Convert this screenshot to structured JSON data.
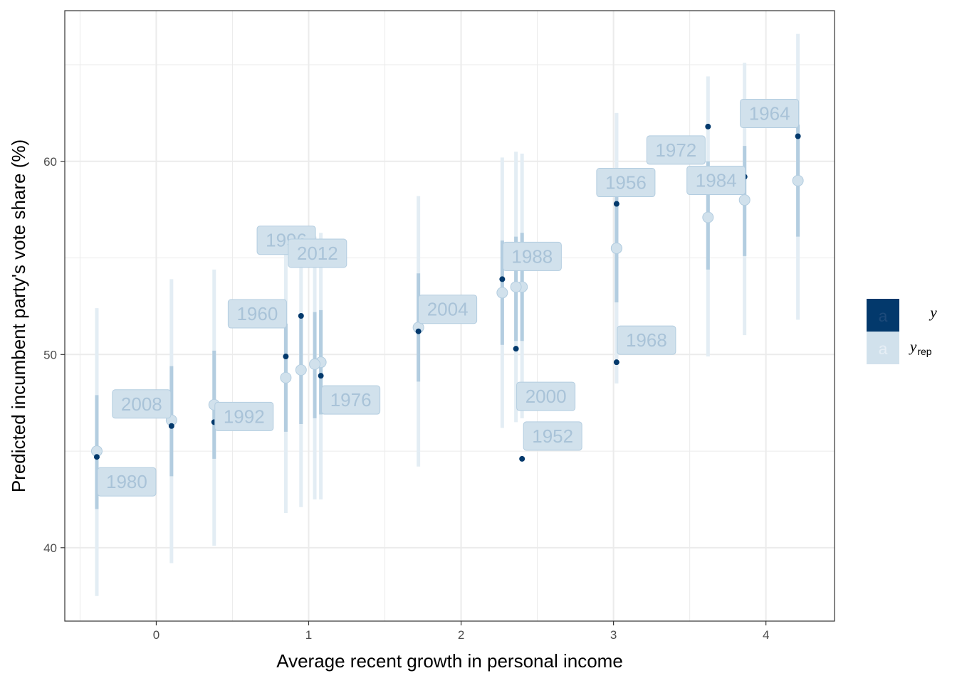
{
  "colors": {
    "y": "#03396c",
    "yrep": "#d1e1ec",
    "interval_inner": "#b3cde0",
    "interval_outer": "#e3edf4",
    "label_text": "#a9c3d8",
    "label_border": "#b3cde0",
    "grid": "#ebebeb"
  },
  "chart_data": {
    "type": "scatter",
    "xlabel": "Average recent growth in personal income",
    "ylabel": "Predicted incumbent party's vote share (%)",
    "xlim": [
      -0.6,
      4.45
    ],
    "ylim": [
      36.2,
      67.8
    ],
    "xticks": [
      0,
      1,
      2,
      3,
      4
    ],
    "yticks": [
      40,
      50,
      60
    ],
    "xtick_labels": [
      "0",
      "1",
      "2",
      "3",
      "4"
    ],
    "ytick_labels": [
      "40",
      "50",
      "60"
    ],
    "grid": true,
    "legend": {
      "placement": "right",
      "key_text": "a",
      "items": [
        {
          "label": "y",
          "subscript": ""
        },
        {
          "label": "y",
          "subscript": "rep"
        }
      ]
    },
    "points": [
      {
        "year": "1952",
        "x": 2.4,
        "y": 44.6,
        "yrep": 53.5,
        "inner": [
          50.7,
          56.3
        ],
        "outer": [
          46.7,
          60.4
        ]
      },
      {
        "year": "1956",
        "x": 3.02,
        "y": 57.8,
        "yrep": 55.5,
        "inner": [
          52.7,
          58.4
        ],
        "outer": [
          48.5,
          62.5
        ]
      },
      {
        "year": "1960",
        "x": 0.85,
        "y": 49.9,
        "yrep": 48.8,
        "inner": [
          46.0,
          51.6
        ],
        "outer": [
          41.8,
          55.9
        ]
      },
      {
        "year": "1964",
        "x": 4.21,
        "y": 61.3,
        "yrep": 59.0,
        "inner": [
          56.1,
          61.9
        ],
        "outer": [
          51.8,
          66.6
        ]
      },
      {
        "year": "1968",
        "x": 3.02,
        "y": 49.6,
        "yrep": 55.5,
        "inner": [
          52.7,
          58.4
        ],
        "outer": [
          48.5,
          62.5
        ]
      },
      {
        "year": "1972",
        "x": 3.62,
        "y": 61.8,
        "yrep": 57.1,
        "inner": [
          54.4,
          60.0
        ],
        "outer": [
          49.9,
          64.4
        ]
      },
      {
        "year": "1976",
        "x": 1.08,
        "y": 48.9,
        "yrep": 49.6,
        "inner": [
          46.9,
          52.3
        ],
        "outer": [
          42.5,
          56.3
        ]
      },
      {
        "year": "1980",
        "x": -0.39,
        "y": 44.7,
        "yrep": 45.0,
        "inner": [
          42.0,
          47.9
        ],
        "outer": [
          37.5,
          52.4
        ]
      },
      {
        "year": "1984",
        "x": 3.86,
        "y": 59.2,
        "yrep": 58.0,
        "inner": [
          55.1,
          60.8
        ],
        "outer": [
          51.0,
          65.1
        ]
      },
      {
        "year": "1988",
        "x": 2.27,
        "y": 53.9,
        "yrep": 53.2,
        "inner": [
          50.5,
          55.9
        ],
        "outer": [
          46.2,
          60.2
        ]
      },
      {
        "year": "1992",
        "x": 0.38,
        "y": 46.5,
        "yrep": 47.4,
        "inner": [
          44.6,
          50.2
        ],
        "outer": [
          40.1,
          54.4
        ]
      },
      {
        "year": "1996",
        "x": 1.04,
        "y": 54.7,
        "yrep": 49.5,
        "inner": [
          46.7,
          52.2
        ],
        "outer": [
          42.5,
          56.1
        ]
      },
      {
        "year": "2000",
        "x": 2.36,
        "y": 50.3,
        "yrep": 53.5,
        "inner": [
          50.7,
          56.1
        ],
        "outer": [
          46.5,
          60.5
        ]
      },
      {
        "year": "2004",
        "x": 1.72,
        "y": 51.2,
        "yrep": 51.4,
        "inner": [
          48.6,
          54.2
        ],
        "outer": [
          44.2,
          58.2
        ]
      },
      {
        "year": "2008",
        "x": 0.1,
        "y": 46.3,
        "yrep": 46.6,
        "inner": [
          43.7,
          49.4
        ],
        "outer": [
          39.2,
          53.9
        ]
      },
      {
        "year": "2012",
        "x": 0.95,
        "y": 52.0,
        "yrep": 49.2,
        "inner": [
          46.4,
          52.0
        ],
        "outer": [
          42.1,
          56.0
        ]
      }
    ]
  }
}
